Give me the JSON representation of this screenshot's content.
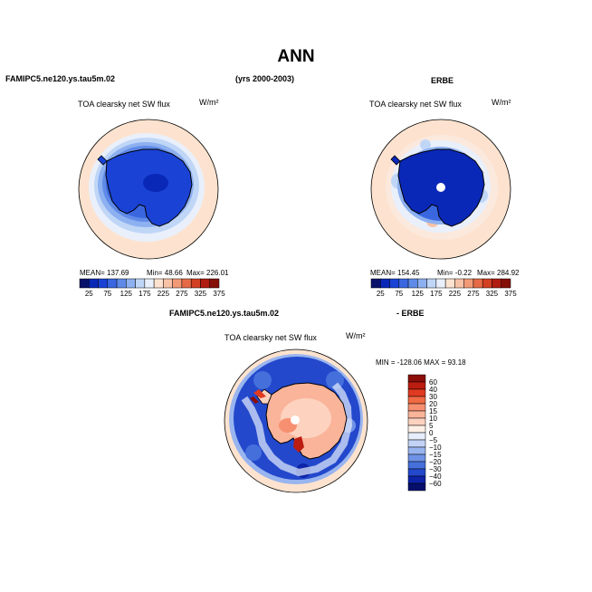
{
  "title": "ANN",
  "header": {
    "left": "FAMIPC5.ne120.ys.tau5m.02",
    "center": "(yrs 2000-2003)",
    "right": "ERBE",
    "diff_left": "FAMIPC5.ne120.ys.tau5m.02",
    "diff_right": "- ERBE"
  },
  "chart_data": [
    {
      "type": "heatmap",
      "projection": "south-polar-stereographic",
      "title": "TOA clearsky net SW flux",
      "units": "W/m²",
      "stats": {
        "mean": "MEAN= 137.69",
        "min": "Min=  48.66",
        "max": "Max= 226.01"
      },
      "colorbar": {
        "orientation": "horizontal",
        "levels": [
          25,
          50,
          75,
          100,
          125,
          150,
          175,
          200,
          225,
          250,
          275,
          300,
          325,
          350,
          375
        ],
        "tick_labels": [
          "25",
          "75",
          "125",
          "175",
          "225",
          "275",
          "325",
          "375"
        ],
        "colors": [
          "#08126b",
          "#0a28b8",
          "#1a43d6",
          "#3a66e0",
          "#5f8ae8",
          "#8db0f0",
          "#c0d6f7",
          "#e9f0fb",
          "#fde3cf",
          "#f8c2a6",
          "#f29a76",
          "#e66a47",
          "#d23f23",
          "#b01c10",
          "#841008"
        ]
      }
    },
    {
      "type": "heatmap",
      "projection": "south-polar-stereographic",
      "title": "TOA clearsky net SW flux",
      "units": "W/m²",
      "stats": {
        "mean": "MEAN= 154.45",
        "min": "Min=  -0.22",
        "max": "Max= 284.92"
      },
      "colorbar": {
        "orientation": "horizontal",
        "levels": [
          25,
          50,
          75,
          100,
          125,
          150,
          175,
          200,
          225,
          250,
          275,
          300,
          325,
          350,
          375
        ],
        "tick_labels": [
          "25",
          "75",
          "125",
          "175",
          "225",
          "275",
          "325",
          "375"
        ],
        "colors": [
          "#08126b",
          "#0a28b8",
          "#1a43d6",
          "#3a66e0",
          "#5f8ae8",
          "#8db0f0",
          "#c0d6f7",
          "#e9f0fb",
          "#fde3cf",
          "#f8c2a6",
          "#f29a76",
          "#e66a47",
          "#d23f23",
          "#b01c10",
          "#841008"
        ]
      }
    },
    {
      "type": "heatmap",
      "projection": "south-polar-stereographic",
      "title": "TOA clearsky net SW flux",
      "units": "W/m²",
      "stats": {
        "minmax": "MIN = -128.06  MAX =  93.18"
      },
      "colorbar": {
        "orientation": "vertical",
        "levels": [
          -60,
          -40,
          -30,
          -20,
          -15,
          -10,
          -5,
          0,
          5,
          10,
          15,
          20,
          30,
          40,
          60
        ],
        "tick_labels": [
          "60",
          "40",
          "30",
          "20",
          "15",
          "10",
          "5",
          "0",
          "−5",
          "−10",
          "−15",
          "−20",
          "−30",
          "−40",
          "−60"
        ],
        "colors_top_to_bottom": [
          "#8b0e08",
          "#bb1d10",
          "#e03a20",
          "#f06a44",
          "#f79070",
          "#fab49a",
          "#fdd2bf",
          "#fef0e6",
          "#e6eefc",
          "#c2d3f6",
          "#99b5ef",
          "#6f92e6",
          "#4570dc",
          "#2348cc",
          "#0d23a8",
          "#060f6b"
        ]
      }
    }
  ]
}
